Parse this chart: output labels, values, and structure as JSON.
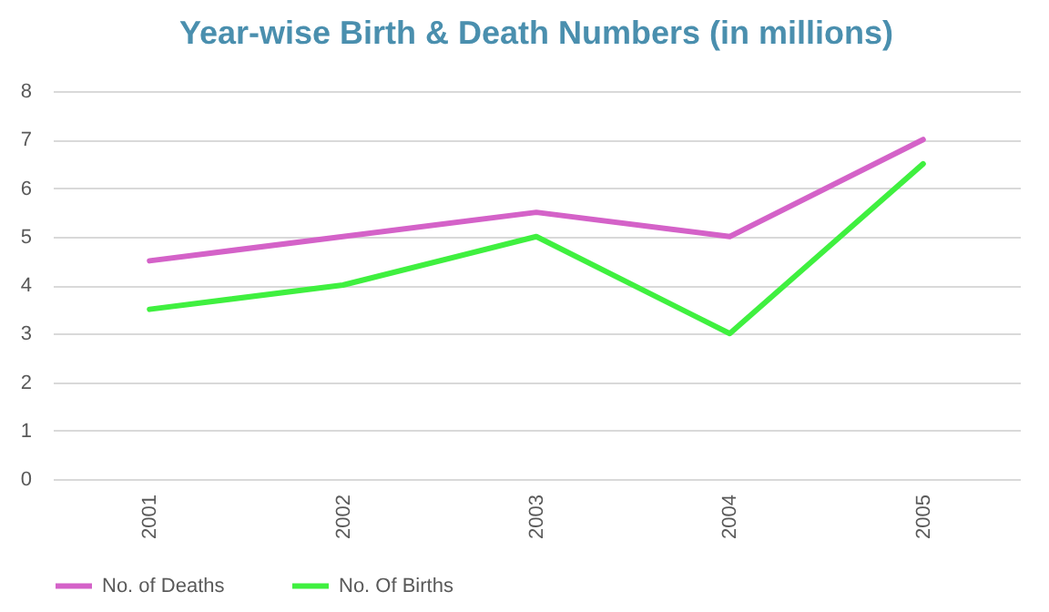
{
  "chart_data": {
    "type": "line",
    "title": "Year-wise Birth & Death Numbers (in millions)",
    "categories": [
      "2001",
      "2002",
      "2003",
      "2004",
      "2005"
    ],
    "series": [
      {
        "name": "No. of Deaths",
        "color": "#d462c8",
        "values": [
          4.5,
          5,
          5.5,
          5,
          7
        ]
      },
      {
        "name": "No. Of Births",
        "color": "#3ff03f",
        "values": [
          3.5,
          4,
          5,
          3,
          6.5
        ]
      }
    ],
    "ylim": [
      0,
      8
    ],
    "yticks": [
      0,
      1,
      2,
      3,
      4,
      5,
      6,
      7,
      8
    ],
    "grid": "y",
    "legend": "bottom",
    "line_style": "solid"
  }
}
